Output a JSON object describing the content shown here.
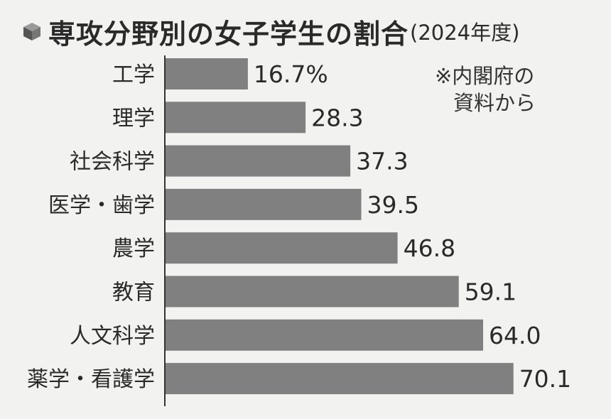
{
  "title": "専攻分野別の女子学生の割合",
  "subtitle": "(2024年度)",
  "note_lines": [
    "※内閣府の",
    "資料から"
  ],
  "colors": {
    "bar": "#808080",
    "axis": "#333333",
    "text": "#2a2a2a"
  },
  "chart_data": {
    "type": "bar",
    "orientation": "horizontal",
    "categories": [
      "工学",
      "理学",
      "社会科学",
      "医学・歯学",
      "農学",
      "教育",
      "人文科学",
      "薬学・看護学"
    ],
    "values": [
      16.7,
      28.3,
      37.3,
      39.5,
      46.8,
      59.1,
      64.0,
      70.1
    ],
    "value_labels": [
      "16.7%",
      "28.3",
      "37.3",
      "39.5",
      "46.8",
      "59.1",
      "64.0",
      "70.1"
    ],
    "unit": "%",
    "xlim": [
      0,
      100
    ],
    "grid": false
  }
}
